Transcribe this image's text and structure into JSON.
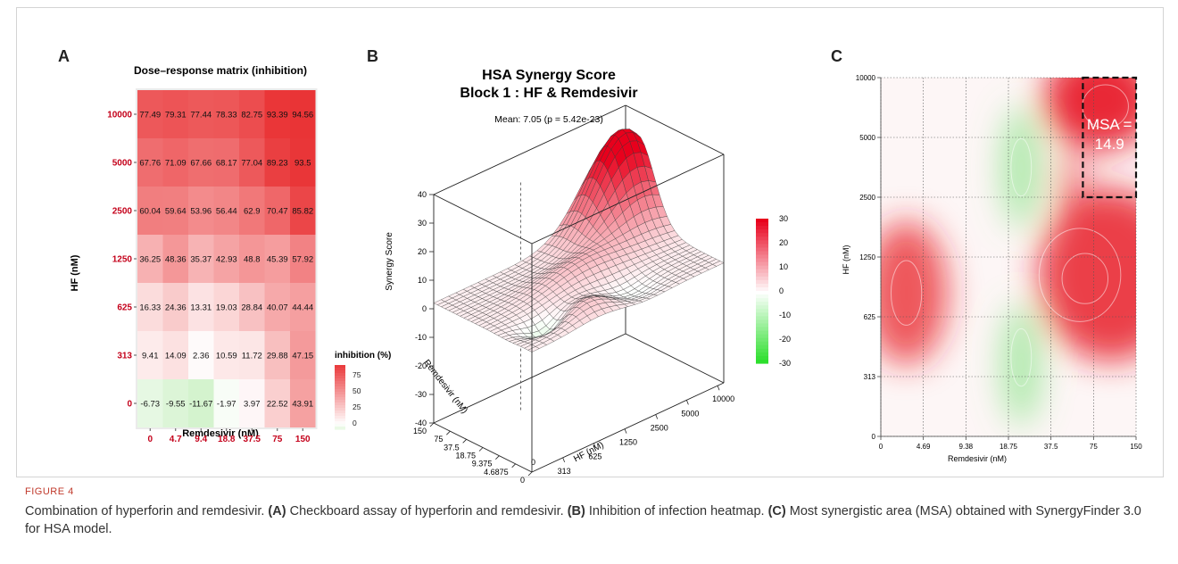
{
  "panels": {
    "a": "A",
    "b": "B",
    "c": "C"
  },
  "figure_label": "FIGURE 4",
  "caption": {
    "intro": "Combination of hyperforin and remdesivir.",
    "a_tag": "(A)",
    "a_text": "Checkboard assay of hyperforin and remdesivir.",
    "b_tag": "(B)",
    "b_text": "Inhibition of infection heatmap.",
    "c_tag": "(C)",
    "c_text": "Most synergistic area (MSA) obtained with SynergyFinder 3.0 for HSA model."
  },
  "chart_data": [
    {
      "type": "heatmap",
      "title": "Dose–response matrix (inhibition)",
      "xlabel": "Remdesivir (nM)",
      "ylabel": "HF (nM)",
      "x_categories": [
        "0",
        "4.7",
        "9.4",
        "18.8",
        "37.5",
        "75",
        "150"
      ],
      "y_categories": [
        "10000",
        "5000",
        "2500",
        "1250",
        "625",
        "313",
        "0"
      ],
      "values": [
        [
          77.49,
          79.31,
          77.44,
          78.33,
          82.75,
          93.39,
          94.56
        ],
        [
          67.76,
          71.09,
          67.66,
          68.17,
          77.04,
          89.23,
          93.5
        ],
        [
          60.04,
          59.64,
          53.96,
          56.44,
          62.9,
          70.47,
          85.82
        ],
        [
          36.25,
          48.36,
          35.37,
          42.93,
          48.8,
          45.39,
          57.92
        ],
        [
          16.33,
          24.36,
          13.31,
          19.03,
          28.84,
          40.07,
          44.44
        ],
        [
          9.41,
          14.09,
          2.36,
          10.59,
          11.72,
          29.88,
          47.15
        ],
        [
          -6.73,
          -9.55,
          -11.67,
          -1.97,
          3.97,
          22.52,
          43.91
        ]
      ],
      "legend_title": "inhibition (%)",
      "legend_ticks": [
        75,
        50,
        25,
        0
      ],
      "colors": {
        "low": "#c8f0c0",
        "mid": "#ffffff",
        "high": "#e8282a",
        "tick": "#c4001a"
      }
    },
    {
      "type": "surface",
      "title": "HSA Synergy Score",
      "subtitle": "Block 1 : HF & Remdesivir",
      "annotation": "Mean: 7.05 (p = 5.42e-23)",
      "zlabel": "Synergy Score",
      "z_ticks": [
        40,
        30,
        20,
        10,
        0,
        -10,
        -20,
        -30,
        -40
      ],
      "x_label": "Remdesivir (nM)",
      "x_ticks": [
        "150",
        "75",
        "37.5",
        "18.75",
        "9.375",
        "4.6875",
        "0"
      ],
      "y_label": "HF (nM)",
      "y_ticks": [
        "313",
        "625",
        "1250",
        "2500",
        "5000",
        "10000"
      ],
      "y_origin": "0",
      "colorbar_ticks": [
        30,
        20,
        10,
        0,
        -10,
        -20,
        -30
      ],
      "colors": {
        "pos": "#e8001c",
        "neg": "#22dd22",
        "zero": "#ffffff"
      }
    },
    {
      "type": "heatmap",
      "xlabel": "Remdesivir (nM)",
      "ylabel": "HF (nM)",
      "x_ticks": [
        "0",
        "4.69",
        "9.38",
        "18.75",
        "37.5",
        "75",
        "150"
      ],
      "y_ticks": [
        "0",
        "313",
        "625",
        "1250",
        "2500",
        "5000",
        "10000"
      ],
      "msa_label_line1": "MSA =",
      "msa_label_line2": "14.9",
      "msa_value": 14.9,
      "colors": {
        "pos": "#e8202a",
        "neg": "#6ee06e"
      }
    }
  ]
}
